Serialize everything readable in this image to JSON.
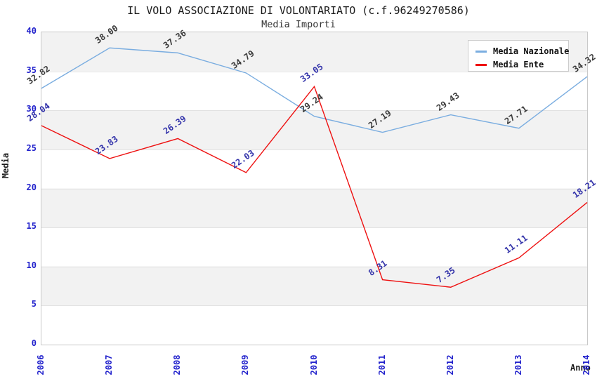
{
  "title": "IL VOLO ASSOCIAZIONE DI VOLONTARIATO (c.f.96249270586)",
  "subtitle": "Media Importi",
  "axes": {
    "y_label": "Media",
    "x_label": "Anno",
    "y_ticks": [
      "40",
      "35",
      "30",
      "25",
      "20",
      "15",
      "10",
      "5",
      "0"
    ],
    "x_ticks": [
      "2006",
      "2007",
      "2008",
      "2009",
      "2010",
      "2011",
      "2012",
      "2013",
      "2014"
    ]
  },
  "legend": {
    "items": [
      {
        "label": "Media Nazionale",
        "color": "#7aade0"
      },
      {
        "label": "Media Ente",
        "color": "#ee1111"
      }
    ]
  },
  "colors": {
    "tick_blue": "#2222cc",
    "band_gray": "#f2f2f2",
    "gridline": "#e2e2e2",
    "plot_border": "#c9c9c9",
    "nazionale_line": "#7aade0",
    "ente_line": "#ee1111",
    "nazionale_value_label": "#3a3a3a",
    "ente_value_label": "#3333aa"
  },
  "chart_data": {
    "type": "line",
    "x": [
      2006,
      2007,
      2008,
      2009,
      2010,
      2011,
      2012,
      2013,
      2014
    ],
    "series": [
      {
        "name": "Media Nazionale",
        "color": "#7aade0",
        "label_color": "#3a3a3a",
        "values": [
          32.82,
          38.0,
          37.36,
          34.79,
          29.24,
          27.19,
          29.43,
          27.71,
          34.32
        ],
        "labels": [
          "32.82",
          "38.00",
          "37.36",
          "34.79",
          "29.24",
          "27.19",
          "29.43",
          "27.71",
          "34.32"
        ]
      },
      {
        "name": "Media Ente",
        "color": "#ee1111",
        "label_color": "#3333aa",
        "values": [
          28.04,
          23.83,
          26.39,
          22.03,
          33.05,
          8.31,
          7.35,
          11.11,
          18.21
        ],
        "labels": [
          "28.04",
          "23.83",
          "26.39",
          "22.03",
          "33.05",
          "8.31",
          "7.35",
          "11.11",
          "18.21"
        ]
      }
    ],
    "title": "IL VOLO ASSOCIAZIONE DI VOLONTARIATO (c.f.96249270586)",
    "subtitle": "Media Importi",
    "xlabel": "Anno",
    "ylabel": "Media",
    "ylim": [
      0,
      40
    ],
    "y_grid_step": 5,
    "grid": true,
    "legend_position": "top-right",
    "background_bands": "alternating gray/white horizontal bands of 5 units"
  }
}
